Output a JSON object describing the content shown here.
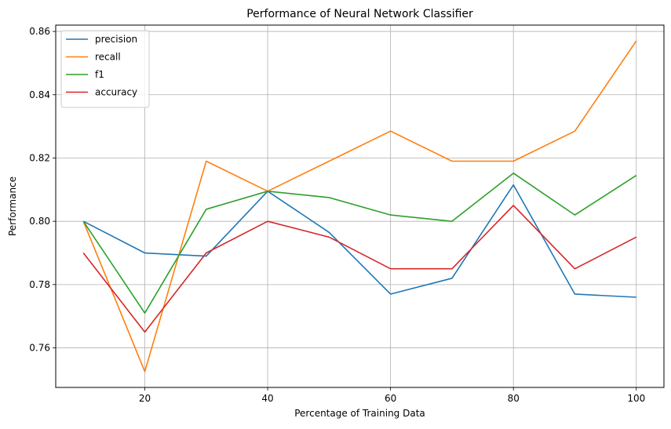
{
  "chart_data": {
    "type": "line",
    "title": "Performance of Neural Network Classifier",
    "xlabel": "Percentage of Training Data",
    "ylabel": "Performance",
    "x": [
      10,
      20,
      30,
      40,
      50,
      60,
      70,
      80,
      90,
      100
    ],
    "xlim": [
      5.5,
      104.5
    ],
    "ylim": [
      0.7475,
      0.862
    ],
    "xticks": [
      20,
      40,
      60,
      80,
      100
    ],
    "yticks": [
      0.76,
      0.78,
      0.8,
      0.82,
      0.84,
      0.86
    ],
    "xtick_labels": [
      "20",
      "40",
      "60",
      "80",
      "100"
    ],
    "ytick_labels": [
      "0.76",
      "0.78",
      "0.80",
      "0.82",
      "0.84",
      "0.86"
    ],
    "grid": true,
    "legend_position": "top-left",
    "series": [
      {
        "name": "precision",
        "color": "#1f77b4",
        "values": [
          0.8,
          0.79,
          0.789,
          0.8095,
          0.7965,
          0.777,
          0.782,
          0.8115,
          0.777,
          0.776
        ]
      },
      {
        "name": "recall",
        "color": "#ff7f0e",
        "values": [
          0.8,
          0.7525,
          0.819,
          0.8095,
          0.819,
          0.8285,
          0.819,
          0.819,
          0.8285,
          0.857
        ]
      },
      {
        "name": "f1",
        "color": "#2ca02c",
        "values": [
          0.8,
          0.771,
          0.8038,
          0.8095,
          0.8075,
          0.802,
          0.8,
          0.8152,
          0.802,
          0.8145
        ]
      },
      {
        "name": "accuracy",
        "color": "#d62728",
        "values": [
          0.79,
          0.765,
          0.79,
          0.8,
          0.795,
          0.785,
          0.785,
          0.805,
          0.785,
          0.795
        ]
      }
    ]
  }
}
